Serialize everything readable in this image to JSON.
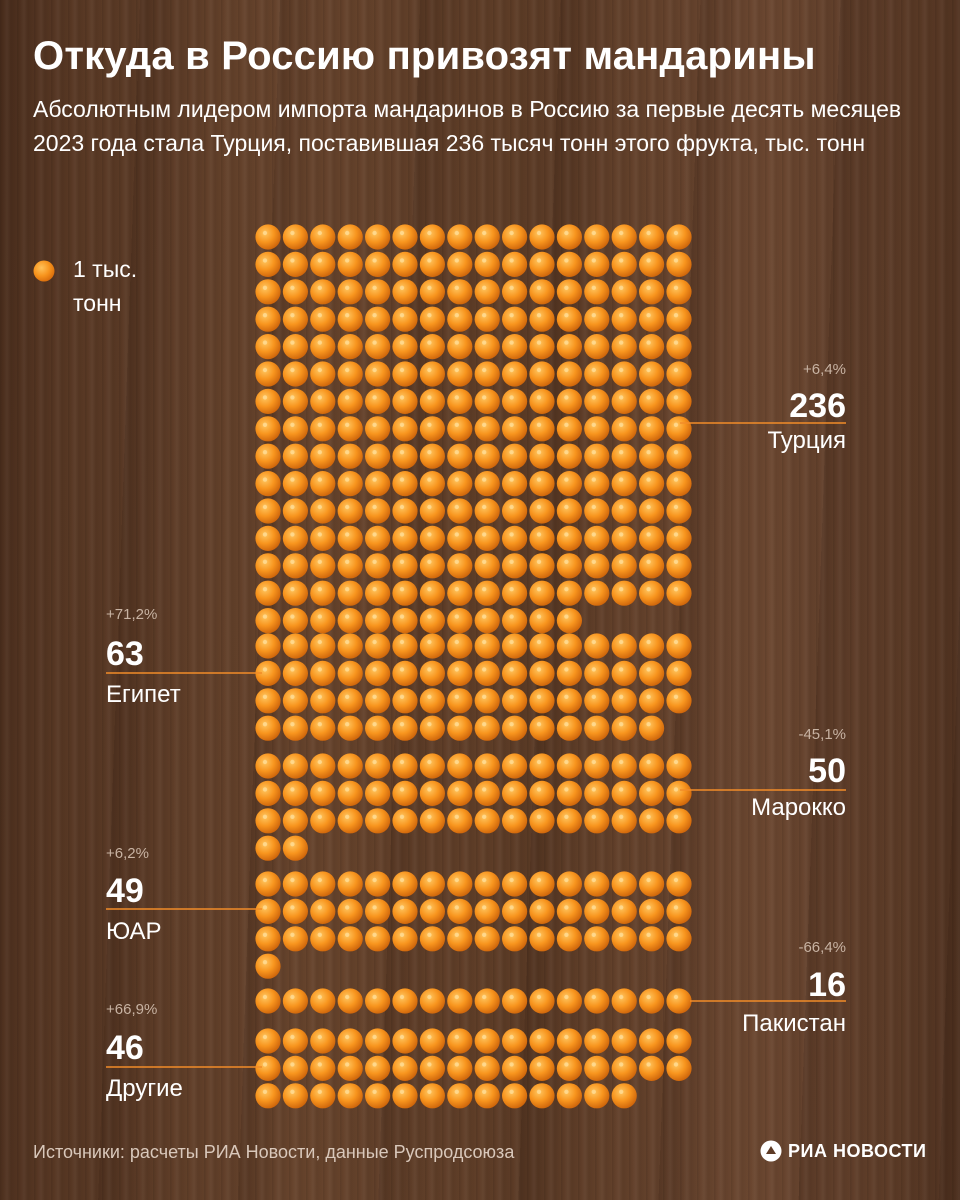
{
  "title": "Откуда в Россию привозят мандарины",
  "subtitle": "Абсолютным лидером импорта мандаринов в Россию за первые десять месяцев 2023 года стала Турция, поставившая 236 тысяч тонн этого фрукта, тыс. тонн",
  "legend": {
    "label": "1 тыс. тонн",
    "icon": "mandarin-icon"
  },
  "colors": {
    "orange": "#f7941d",
    "orange_dark": "#d76a0a",
    "orange_light": "#ffc25a",
    "leader_line": "#f28c28"
  },
  "footer": {
    "source": "Источники: расчеты РИА Новости, данные Руспродсоюза",
    "brand": "РИА НОВОСТИ"
  },
  "chart_data": {
    "type": "pictogram",
    "unit": "тыс. тонн",
    "icon_value": 1,
    "series": [
      {
        "country": "Турция",
        "value": 236,
        "value_label": "236",
        "change": "+6,4%"
      },
      {
        "country": "Египет",
        "value": 63,
        "value_label": "63",
        "change": "+71,2%"
      },
      {
        "country": "Марокко",
        "value": 50,
        "value_label": "50",
        "change": "-45,1%"
      },
      {
        "country": "ЮАР",
        "value": 49,
        "value_label": "49",
        "change": "+6,2%"
      },
      {
        "country": "Пакистан",
        "value": 16,
        "value_label": "16",
        "change": "-66,4%"
      },
      {
        "country": "Другие",
        "value": 46,
        "value_label": "46",
        "change": "+66,9%"
      }
    ]
  }
}
